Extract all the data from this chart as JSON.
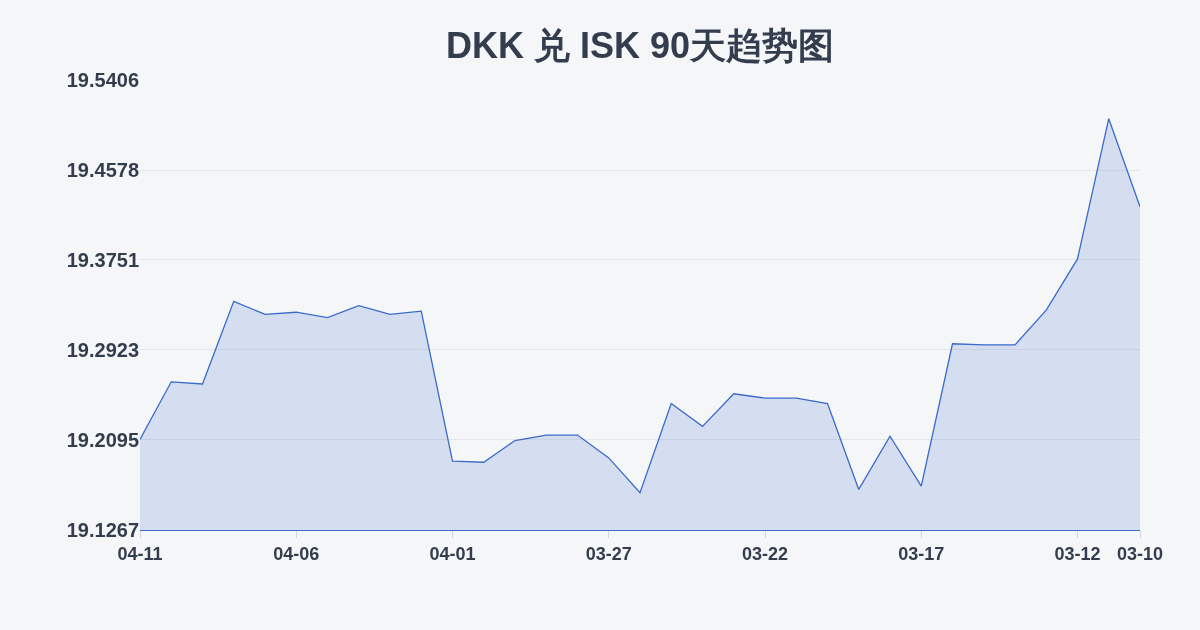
{
  "chart_data": {
    "type": "area",
    "title": "DKK 兑 ISK 90天趋势图",
    "categories": [
      "04-11",
      null,
      null,
      null,
      null,
      "04-06",
      null,
      null,
      null,
      null,
      "04-01",
      null,
      null,
      null,
      null,
      "03-27",
      null,
      null,
      null,
      null,
      "03-22",
      null,
      null,
      null,
      null,
      "03-17",
      null,
      null,
      null,
      null,
      "03-12",
      null,
      "03-10"
    ],
    "series": [
      {
        "color": "#3a6bc9",
        "values": [
          19.21,
          19.263,
          19.261,
          19.337,
          19.325,
          19.327,
          19.322,
          19.333,
          19.325,
          19.328,
          19.19,
          19.189,
          19.209,
          19.214,
          19.214,
          19.193,
          19.161,
          19.243,
          19.222,
          19.252,
          19.248,
          19.248,
          19.243,
          19.164,
          19.213,
          19.167,
          19.298,
          19.297,
          19.297,
          19.329,
          19.376,
          19.505,
          19.424
        ]
      }
    ],
    "ylim": [
      19.1267,
      19.5406
    ],
    "yticks": [
      19.1267,
      19.2095,
      19.2923,
      19.3751,
      19.4578,
      19.5406
    ],
    "grid": "y"
  }
}
